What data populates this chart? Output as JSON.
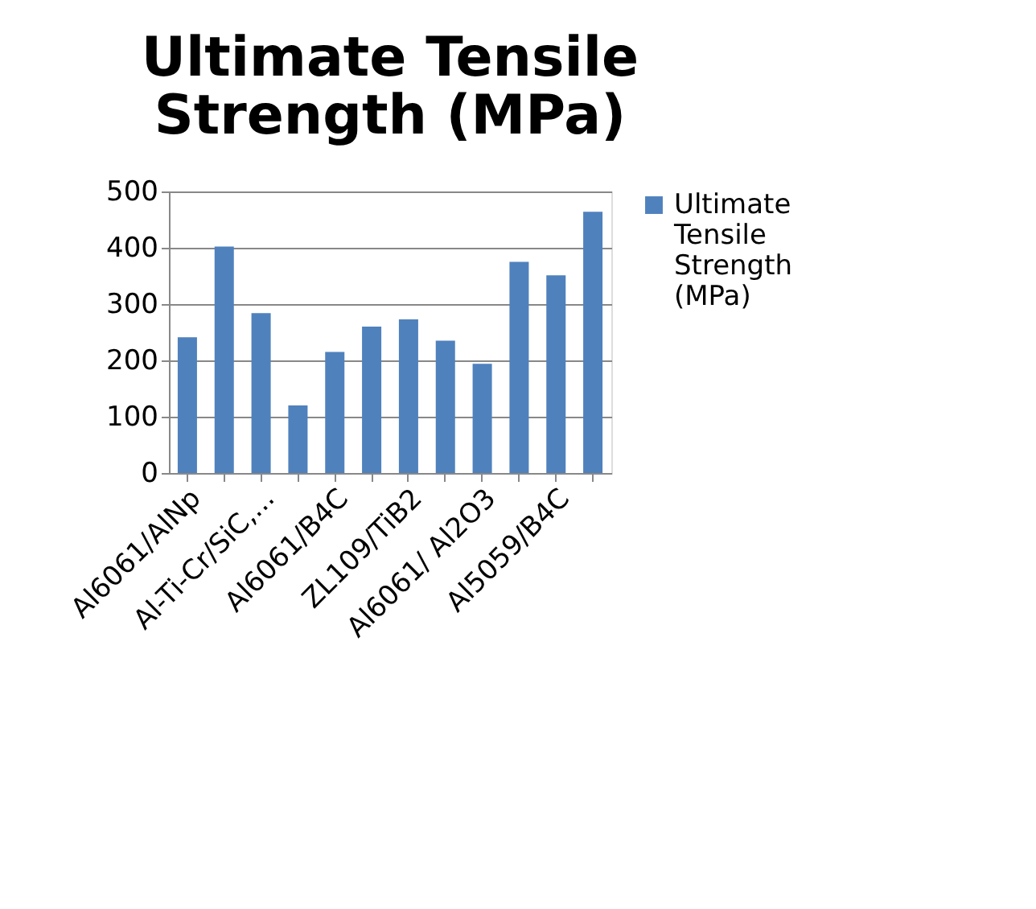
{
  "chart_data": {
    "type": "bar",
    "title": "Ultimate Tensile Strength (MPa)",
    "categories": [
      "Al6061/AlNp",
      null,
      "Al-Ti-Cr/SiC,...",
      null,
      "Al6061/B4C",
      null,
      "ZL109/TiB2",
      null,
      "Al6061/ Al2O3",
      null,
      "Al5059/B4C",
      null
    ],
    "series": [
      {
        "name": "Ultimate Tensile Strength (MPa)",
        "color": "#4f81bd",
        "values": [
          241,
          402,
          284,
          120,
          215,
          260,
          273,
          235,
          194,
          375,
          351,
          464
        ]
      }
    ],
    "ylim": [
      0,
      500
    ],
    "yticks": [
      0,
      100,
      200,
      300,
      400,
      500
    ],
    "grid": "y",
    "legend": "right"
  }
}
